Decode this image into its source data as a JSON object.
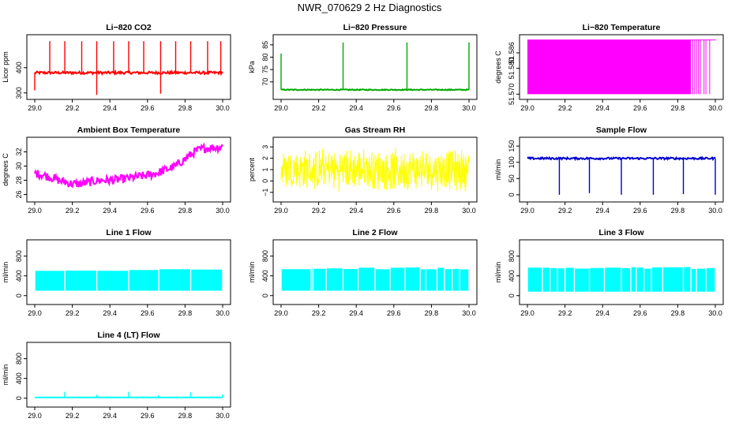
{
  "figure": {
    "title": "NWR_070629  2 Hz Diagnostics"
  },
  "chart_data": [
    {
      "type": "line",
      "title": "Li−820 CO2",
      "ylabel": "Licor ppm",
      "xlim": [
        29.0,
        30.0
      ],
      "ylim": [
        290,
        515
      ],
      "xticks": [
        "29.0",
        "29.2",
        "29.4",
        "29.6",
        "29.8",
        "30.0"
      ],
      "yticks": [
        {
          "v": 300,
          "label": "300"
        },
        {
          "v": 400,
          "label": "400"
        }
      ],
      "color": "#ff0000",
      "baseline": 380,
      "noise": 5,
      "spikes_up": [
        {
          "x": 29.08,
          "y": 505
        },
        {
          "x": 29.16,
          "y": 505
        },
        {
          "x": 29.25,
          "y": 505
        },
        {
          "x": 29.33,
          "y": 505
        },
        {
          "x": 29.42,
          "y": 505
        },
        {
          "x": 29.5,
          "y": 505
        },
        {
          "x": 29.58,
          "y": 505
        },
        {
          "x": 29.67,
          "y": 505
        },
        {
          "x": 29.75,
          "y": 505
        },
        {
          "x": 29.83,
          "y": 505
        },
        {
          "x": 29.92,
          "y": 505
        },
        {
          "x": 29.99,
          "y": 505
        }
      ],
      "spikes_down": [
        {
          "x": 29.33,
          "y": 292
        },
        {
          "x": 29.67,
          "y": 297
        },
        {
          "x": 29.0,
          "y": 310
        }
      ]
    },
    {
      "type": "line",
      "title": "Li−820 Pressure",
      "ylabel": "kPa",
      "xlim": [
        29.0,
        30.0
      ],
      "ylim": [
        64.5,
        87.5
      ],
      "xticks": [
        "29.0",
        "29.2",
        "29.4",
        "29.6",
        "29.8",
        "30.0"
      ],
      "yticks": [
        {
          "v": 70,
          "label": "70"
        },
        {
          "v": 75,
          "label": "75"
        },
        {
          "v": 80,
          "label": "80"
        },
        {
          "v": 85,
          "label": "85"
        }
      ],
      "color": "#00aa00",
      "baseline": 66.8,
      "noise": 0.2,
      "spikes_up": [
        {
          "x": 29.0,
          "y": 81.5
        },
        {
          "x": 29.33,
          "y": 86
        },
        {
          "x": 29.67,
          "y": 86
        },
        {
          "x": 30.0,
          "y": 86
        }
      ],
      "spikes_down": []
    },
    {
      "type": "area",
      "title": "Li−820 Temperature",
      "ylabel": "degrees C",
      "xlim": [
        29.0,
        30.0
      ],
      "ylim": [
        51.5695,
        51.5915
      ],
      "xticks": [
        "29.0",
        "29.2",
        "29.4",
        "29.6",
        "29.8",
        "30.0"
      ],
      "yticks": [
        {
          "v": 51.57,
          "label": "51.570"
        },
        {
          "v": 51.58,
          "label": "51.580"
        },
        {
          "v": 51.586,
          "label": "51.586"
        }
      ],
      "color": "#ff00ff",
      "fill_from": 29.0,
      "fill_to": 29.87,
      "fill_low": 51.57,
      "fill_high": 51.591,
      "trailing_lines": [
        29.88,
        29.89,
        29.9,
        29.91,
        29.92,
        29.94,
        29.95,
        29.97
      ]
    },
    {
      "type": "line",
      "title": "Ambient Box Temperature",
      "ylabel": "degrees C",
      "xlim": [
        29.0,
        30.0
      ],
      "ylim": [
        25.5,
        33.5
      ],
      "xticks": [
        "29.0",
        "29.2",
        "29.4",
        "29.6",
        "29.8",
        "30.0"
      ],
      "yticks": [
        {
          "v": 26,
          "label": "26"
        },
        {
          "v": 28,
          "label": "28"
        },
        {
          "v": 30,
          "label": "30"
        },
        {
          "v": 32,
          "label": "32"
        }
      ],
      "color": "#ff00ff",
      "trend_x": [
        29.0,
        29.05,
        29.1,
        29.15,
        29.2,
        29.25,
        29.3,
        29.35,
        29.4,
        29.45,
        29.5,
        29.55,
        29.6,
        29.65,
        29.7,
        29.75,
        29.8,
        29.85,
        29.9,
        29.95,
        30.0
      ],
      "trend_y": [
        29.0,
        28.7,
        28.3,
        27.8,
        27.5,
        27.5,
        27.8,
        28.0,
        28.0,
        28.1,
        28.3,
        28.5,
        28.7,
        29.0,
        29.5,
        30.0,
        31.0,
        32.0,
        32.5,
        32.6,
        32.7
      ],
      "noise": 0.6
    },
    {
      "type": "area",
      "title": "Gas Stream RH",
      "ylabel": "percent",
      "xlim": [
        29.0,
        30.0
      ],
      "ylim": [
        -1.5,
        3.5
      ],
      "xticks": [
        "29.0",
        "29.2",
        "29.4",
        "29.6",
        "29.8",
        "30.0"
      ],
      "yticks": [
        {
          "v": -1,
          "label": "−1"
        },
        {
          "v": 0,
          "label": "0"
        },
        {
          "v": 1,
          "label": "1"
        },
        {
          "v": 2,
          "label": "2"
        },
        {
          "v": 3,
          "label": "3"
        }
      ],
      "color": "#ffff00",
      "center": 1.0,
      "amp": 2.0
    },
    {
      "type": "line",
      "title": "Sample Flow",
      "ylabel": "ml/min",
      "xlim": [
        29.0,
        30.0
      ],
      "ylim": [
        -10,
        165
      ],
      "xticks": [
        "29.0",
        "29.2",
        "29.4",
        "29.6",
        "29.8",
        "30.0"
      ],
      "yticks": [
        {
          "v": 0,
          "label": "0"
        },
        {
          "v": 50,
          "label": "50"
        },
        {
          "v": 100,
          "label": "100"
        },
        {
          "v": 150,
          "label": "150"
        }
      ],
      "color": "#0000cc",
      "baseline": 112,
      "noise": 3,
      "spikes_up": [],
      "spikes_down": [
        {
          "x": 29.17,
          "y": 0
        },
        {
          "x": 29.33,
          "y": 5
        },
        {
          "x": 29.5,
          "y": 0
        },
        {
          "x": 29.67,
          "y": 0
        },
        {
          "x": 29.83,
          "y": 2
        },
        {
          "x": 30.0,
          "y": 0
        }
      ]
    },
    {
      "type": "area",
      "title": "Line 1 Flow",
      "ylabel": "ml/min",
      "xlim": [
        29.0,
        30.0
      ],
      "ylim": [
        -100,
        1050
      ],
      "xticks": [
        "29.0",
        "29.2",
        "29.4",
        "29.6",
        "29.8",
        "30.0"
      ],
      "yticks": [
        {
          "v": 0,
          "label": "0"
        },
        {
          "v": 400,
          "label": "400"
        },
        {
          "v": 800,
          "label": "800"
        }
      ],
      "color": "#00ffff",
      "low": 100,
      "high": 520,
      "gaps": [
        29.16,
        29.33,
        29.5,
        29.66,
        29.83
      ]
    },
    {
      "type": "area",
      "title": "Line 2 Flow",
      "ylabel": "ml/min",
      "xlim": [
        29.0,
        30.0
      ],
      "ylim": [
        -100,
        1050
      ],
      "xticks": [
        "29.0",
        "29.2",
        "29.4",
        "29.6",
        "29.8",
        "30.0"
      ],
      "yticks": [
        {
          "v": 0,
          "label": "0"
        },
        {
          "v": 400,
          "label": "400"
        },
        {
          "v": 800,
          "label": "800"
        }
      ],
      "color": "#00ffff",
      "low": 100,
      "high": 550,
      "gaps": [
        29.16,
        29.17,
        29.24,
        29.33,
        29.41,
        29.5,
        29.58,
        29.66,
        29.74,
        29.77,
        29.83,
        29.87,
        29.91,
        29.95
      ]
    },
    {
      "type": "area",
      "title": "Line 3 Flow",
      "ylabel": "ml/min",
      "xlim": [
        29.0,
        30.0
      ],
      "ylim": [
        -100,
        1050
      ],
      "xticks": [
        "29.0",
        "29.2",
        "29.4",
        "29.6",
        "29.8",
        "30.0"
      ],
      "yticks": [
        {
          "v": 0,
          "label": "0"
        },
        {
          "v": 400,
          "label": "400"
        },
        {
          "v": 800,
          "label": "800"
        }
      ],
      "color": "#00ffff",
      "low": 80,
      "high": 560,
      "gaps": [
        29.08,
        29.12,
        29.16,
        29.2,
        29.25,
        29.33,
        29.41,
        29.5,
        29.55,
        29.58,
        29.62,
        29.66,
        29.72,
        29.83,
        29.87,
        29.9,
        29.95
      ]
    },
    {
      "type": "line",
      "title": "Line 4 (LT) Flow",
      "ylabel": "ml/min",
      "xlim": [
        29.0,
        30.0
      ],
      "ylim": [
        -100,
        1050
      ],
      "xticks": [
        "29.0",
        "29.2",
        "29.4",
        "29.6",
        "29.8",
        "30.0"
      ],
      "yticks": [
        {
          "v": 0,
          "label": "0"
        },
        {
          "v": 400,
          "label": "400"
        },
        {
          "v": 800,
          "label": "800"
        }
      ],
      "color": "#00ffff",
      "baseline": 15,
      "noise": 3,
      "spikes_up": [
        {
          "x": 29.16,
          "y": 130
        },
        {
          "x": 29.33,
          "y": 70
        },
        {
          "x": 29.5,
          "y": 130
        },
        {
          "x": 29.66,
          "y": 60
        },
        {
          "x": 29.83,
          "y": 120
        },
        {
          "x": 30.0,
          "y": 80
        }
      ],
      "spikes_down": []
    }
  ]
}
